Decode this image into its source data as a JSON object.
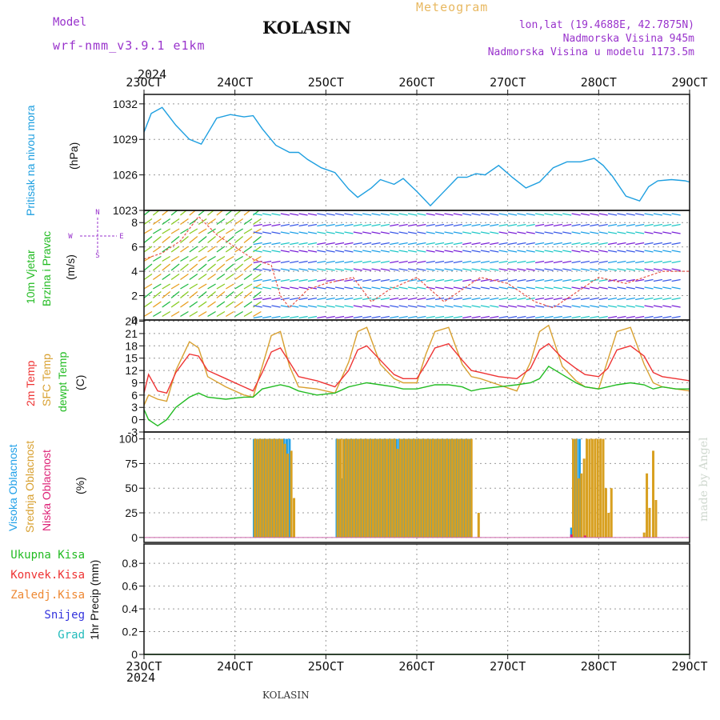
{
  "header": {
    "model_label": "Model",
    "model_name": "wrf-nmm_v3.9.1 e1km",
    "station": "KOLASIN",
    "product": "Meteogram",
    "coords": "lon,lat (19.4688E, 42.7875N)",
    "elevation": "Nadmorska Visina 945m",
    "model_elevation": "Nadmorska Visina u modelu 1173.5m",
    "footer_station": "KOLASIN",
    "credit": "made by Angel"
  },
  "x_axis": {
    "year": "2024",
    "tick_labels": [
      "23OCT",
      "24OCT",
      "25OCT",
      "26OCT",
      "27OCT",
      "28OCT",
      "29OCT"
    ],
    "range_days": [
      0,
      6
    ]
  },
  "colors": {
    "pressure": "#1e9fe0",
    "temp2m": "#ee3333",
    "sfc_temp": "#d8a030",
    "dewpoint": "#22bb22",
    "high_cloud": "#20a0e8",
    "mid_cloud": "#d8a020",
    "low_cloud": "#dd2277",
    "snow": "#3333dd",
    "hail": "#22bbbb",
    "conv": "#ee3333",
    "frontal": "#ee8833",
    "total": "#22bb22"
  },
  "panels": {
    "pressure": {
      "title": "Pritisak na nivou mora",
      "unit": "(hPa)",
      "yticks": [
        "1032",
        "1029",
        "1026",
        "1023"
      ]
    },
    "wind": {
      "title1": "10m Vjetar",
      "title2": "Brzina i Pravac",
      "unit": "(m/s)",
      "yticks": [
        "8",
        "6",
        "4",
        "2",
        "0"
      ],
      "dir_labels": [
        "N",
        "W",
        "E",
        "S"
      ]
    },
    "temperature": {
      "title1": "2m Temp",
      "title2": "SFC Temp",
      "title3": "dewpt Temp",
      "unit": "(C)",
      "yticks": [
        "24",
        "21",
        "18",
        "15",
        "12",
        "9",
        "6",
        "3",
        "0",
        "-3"
      ]
    },
    "clouds": {
      "title1": "Visoka Oblacnost",
      "title2": "Srednja Oblacnost",
      "title3": "Niska Oblacnost",
      "unit": "(%)",
      "yticks": [
        "100",
        "75",
        "50",
        "25",
        "0"
      ]
    },
    "precip": {
      "legend": [
        "Ukupna Kisa",
        "Konvek.Kisa",
        "Zaledj.Kisa",
        "Snijeg",
        "Grad"
      ],
      "title": "1hr Precip (mm)",
      "yticks": [
        "0.8",
        "0.6",
        "0.4",
        "0.2",
        "0"
      ]
    }
  },
  "chart_data": [
    {
      "type": "line",
      "series": [
        {
          "name": "Pritisak na nivou mora",
          "x": [
            0,
            0.08,
            0.2,
            0.35,
            0.5,
            0.63,
            0.8,
            0.95,
            1.1,
            1.2,
            1.3,
            1.45,
            1.6,
            1.7,
            1.8,
            1.95,
            2.1,
            2.25,
            2.35,
            2.5,
            2.6,
            2.75,
            2.85,
            3.0,
            3.15,
            3.3,
            3.45,
            3.55,
            3.65,
            3.75,
            3.9,
            4.05,
            4.2,
            4.35,
            4.5,
            4.65,
            4.8,
            4.95,
            5.05,
            5.15,
            5.3,
            5.45,
            5.55,
            5.65,
            5.8,
            5.95,
            6.0
          ],
          "values": [
            1029.6,
            1031.2,
            1031.7,
            1030.2,
            1029.0,
            1028.6,
            1030.8,
            1031.1,
            1030.9,
            1031.0,
            1029.9,
            1028.5,
            1027.9,
            1027.9,
            1027.3,
            1026.6,
            1026.2,
            1024.8,
            1024.1,
            1024.9,
            1025.6,
            1025.2,
            1025.7,
            1024.6,
            1023.4,
            1024.6,
            1025.8,
            1025.8,
            1026.1,
            1026.0,
            1026.8,
            1025.8,
            1024.9,
            1025.4,
            1026.6,
            1027.1,
            1027.1,
            1027.4,
            1026.8,
            1025.9,
            1024.2,
            1023.8,
            1025.0,
            1025.5,
            1025.6,
            1025.5,
            1025.4
          ]
        }
      ],
      "ylim": [
        1023,
        1032.8
      ],
      "ylabel": "(hPa)"
    },
    {
      "type": "line",
      "series": [
        {
          "name": "2m Temp",
          "x": [
            0,
            0.05,
            0.15,
            0.25,
            0.35,
            0.5,
            0.6,
            0.7,
            0.9,
            1.1,
            1.2,
            1.3,
            1.4,
            1.5,
            1.6,
            1.7,
            1.9,
            2.1,
            2.25,
            2.35,
            2.45,
            2.6,
            2.75,
            2.85,
            3.0,
            3.1,
            3.2,
            3.35,
            3.5,
            3.6,
            3.7,
            3.9,
            4.1,
            4.25,
            4.35,
            4.45,
            4.6,
            4.75,
            4.85,
            5.0,
            5.1,
            5.2,
            5.35,
            5.5,
            5.6,
            5.7,
            5.85,
            6.0
          ],
          "values": [
            6.5,
            11.0,
            7.0,
            6.5,
            11.5,
            16.0,
            15.5,
            12.0,
            10.0,
            8.0,
            7.0,
            11.5,
            16.5,
            17.5,
            14.0,
            10.5,
            9.5,
            8.0,
            12.0,
            17.0,
            18.0,
            14.5,
            11.0,
            10.0,
            10.0,
            13.5,
            17.5,
            18.5,
            14.5,
            12.0,
            11.5,
            10.5,
            10.0,
            12.5,
            17.0,
            18.5,
            15.0,
            12.5,
            11.0,
            10.5,
            12.5,
            17.0,
            18.0,
            15.5,
            11.5,
            10.5,
            10.0,
            9.5
          ]
        },
        {
          "name": "SFC Temp",
          "x": [
            0,
            0.05,
            0.15,
            0.25,
            0.35,
            0.5,
            0.6,
            0.7,
            0.9,
            1.1,
            1.2,
            1.3,
            1.4,
            1.5,
            1.6,
            1.7,
            1.9,
            2.1,
            2.25,
            2.35,
            2.45,
            2.6,
            2.75,
            2.85,
            3.0,
            3.1,
            3.2,
            3.35,
            3.5,
            3.6,
            3.7,
            3.9,
            4.1,
            4.25,
            4.35,
            4.45,
            4.6,
            4.75,
            4.85,
            5.0,
            5.1,
            5.2,
            5.35,
            5.5,
            5.6,
            5.7,
            5.85,
            6.0
          ],
          "values": [
            3.5,
            6.0,
            5.0,
            4.5,
            12.0,
            19.0,
            17.5,
            10.5,
            8.0,
            6.0,
            5.5,
            13.0,
            20.5,
            21.5,
            13.0,
            8.0,
            7.5,
            6.5,
            14.0,
            21.5,
            22.5,
            13.5,
            10.0,
            9.0,
            9.0,
            16.0,
            21.5,
            22.5,
            13.5,
            10.5,
            10.0,
            8.5,
            7.0,
            14.0,
            21.5,
            23.0,
            13.0,
            9.5,
            8.0,
            7.5,
            14.5,
            21.5,
            22.5,
            13.5,
            9.0,
            8.0,
            7.5,
            7.0
          ]
        },
        {
          "name": "dewpt Temp",
          "x": [
            0,
            0.05,
            0.15,
            0.25,
            0.35,
            0.5,
            0.6,
            0.7,
            0.9,
            1.1,
            1.2,
            1.3,
            1.4,
            1.5,
            1.6,
            1.7,
            1.9,
            2.1,
            2.25,
            2.35,
            2.45,
            2.6,
            2.75,
            2.85,
            3.0,
            3.1,
            3.2,
            3.35,
            3.5,
            3.6,
            3.7,
            3.9,
            4.1,
            4.25,
            4.35,
            4.45,
            4.6,
            4.75,
            4.85,
            5.0,
            5.1,
            5.2,
            5.35,
            5.5,
            5.6,
            5.7,
            5.85,
            6.0
          ],
          "values": [
            2.5,
            0.0,
            -1.5,
            0.0,
            3.0,
            5.5,
            6.5,
            5.5,
            5.0,
            5.5,
            5.5,
            7.5,
            8.0,
            8.5,
            8.0,
            7.0,
            6.0,
            6.5,
            8.0,
            8.5,
            9.0,
            8.5,
            8.0,
            7.5,
            7.5,
            8.0,
            8.5,
            8.5,
            8.0,
            7.0,
            7.5,
            8.0,
            8.5,
            9.0,
            10.0,
            13.0,
            11.0,
            9.0,
            8.0,
            7.5,
            8.0,
            8.5,
            9.0,
            8.5,
            7.5,
            8.0,
            7.5,
            7.5
          ]
        }
      ],
      "ylim": [
        -3,
        24
      ],
      "ylabel": "(C)"
    },
    {
      "type": "bar",
      "series": [
        {
          "name": "Visoka Oblacnost",
          "x": [
            1.21,
            1.24,
            1.27,
            1.3,
            1.33,
            1.36,
            1.39,
            1.42,
            1.45,
            1.48,
            1.51,
            1.54,
            1.57,
            1.6,
            2.12,
            2.15,
            2.18,
            2.21,
            2.24,
            2.27,
            2.3,
            2.33,
            2.36,
            2.39,
            2.42,
            2.45,
            2.48,
            2.51,
            2.54,
            2.57,
            2.6,
            2.63,
            2.66,
            2.69,
            2.72,
            2.75,
            2.78,
            2.81,
            2.84,
            2.87,
            2.9,
            2.93,
            2.96,
            2.99,
            3.02,
            3.05,
            3.08,
            3.11,
            3.14,
            3.17,
            3.2,
            3.23,
            3.26,
            3.29,
            3.32,
            3.35,
            3.38,
            3.41,
            3.44,
            3.47,
            3.5,
            3.53,
            3.56,
            3.59,
            4.7,
            4.73,
            4.76,
            4.79
          ],
          "values": [
            100,
            100,
            100,
            100,
            100,
            100,
            100,
            100,
            100,
            100,
            100,
            100,
            100,
            100,
            100,
            100,
            60,
            100,
            100,
            100,
            100,
            100,
            100,
            100,
            100,
            100,
            100,
            100,
            100,
            100,
            100,
            100,
            100,
            100,
            100,
            100,
            100,
            100,
            100,
            100,
            100,
            100,
            100,
            100,
            100,
            100,
            100,
            100,
            100,
            100,
            100,
            100,
            100,
            100,
            100,
            100,
            100,
            100,
            100,
            100,
            100,
            100,
            100,
            100,
            10,
            100,
            100,
            100
          ]
        },
        {
          "name": "Srednja Oblacnost",
          "x": [
            1.22,
            1.25,
            1.28,
            1.31,
            1.34,
            1.37,
            1.4,
            1.43,
            1.46,
            1.49,
            1.52,
            1.55,
            1.58,
            1.62,
            1.65,
            2.13,
            2.16,
            2.19,
            2.22,
            2.25,
            2.28,
            2.31,
            2.34,
            2.37,
            2.4,
            2.43,
            2.46,
            2.49,
            2.52,
            2.55,
            2.58,
            2.61,
            2.64,
            2.67,
            2.7,
            2.73,
            2.76,
            2.79,
            2.82,
            2.85,
            2.88,
            2.91,
            2.94,
            2.97,
            3.0,
            3.03,
            3.06,
            3.09,
            3.12,
            3.15,
            3.18,
            3.21,
            3.24,
            3.27,
            3.3,
            3.33,
            3.36,
            3.39,
            3.42,
            3.45,
            3.48,
            3.51,
            3.54,
            3.57,
            3.6,
            3.68,
            4.72,
            4.75,
            4.78,
            4.81,
            4.84,
            4.87,
            4.9,
            4.93,
            4.96,
            4.99,
            5.02,
            5.05,
            5.08,
            5.11,
            5.14,
            5.5,
            5.53,
            5.56,
            5.6,
            5.63
          ],
          "values": [
            100,
            100,
            100,
            100,
            100,
            100,
            100,
            100,
            100,
            100,
            100,
            95,
            85,
            88,
            40,
            100,
            100,
            100,
            100,
            100,
            100,
            100,
            100,
            100,
            100,
            100,
            100,
            100,
            100,
            100,
            100,
            100,
            100,
            100,
            100,
            100,
            100,
            90,
            100,
            100,
            100,
            100,
            100,
            100,
            100,
            100,
            100,
            100,
            100,
            100,
            100,
            100,
            100,
            100,
            100,
            100,
            100,
            100,
            100,
            100,
            100,
            100,
            100,
            100,
            100,
            25,
            100,
            100,
            60,
            65,
            80,
            100,
            100,
            100,
            100,
            100,
            100,
            100,
            50,
            25,
            50,
            5,
            65,
            30,
            88,
            38
          ]
        },
        {
          "name": "Niska Oblacnost",
          "x": [
            4.7,
            4.85
          ],
          "values": [
            3,
            2
          ]
        }
      ],
      "ylim": [
        0,
        100
      ],
      "ylabel": "(%)"
    },
    {
      "type": "line",
      "series": [
        {
          "name": "Ukupna Kisa",
          "x": [
            0,
            6
          ],
          "values": [
            0,
            0
          ]
        }
      ],
      "ylim": [
        0,
        0.95
      ],
      "ylabel": "1hr Precip (mm)"
    }
  ]
}
